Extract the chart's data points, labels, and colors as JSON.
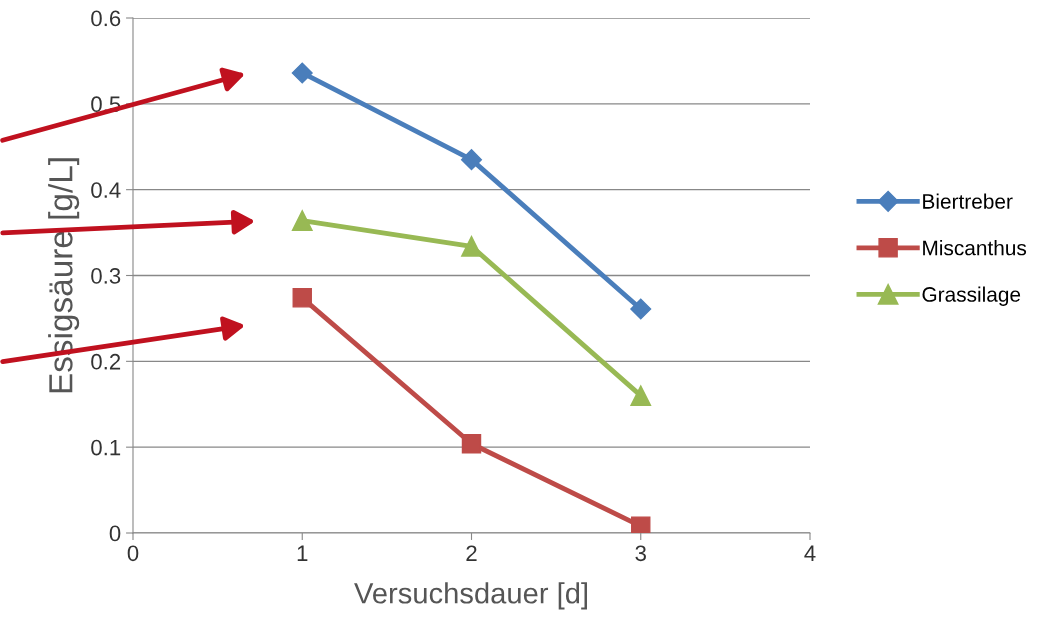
{
  "chart_data": {
    "type": "line",
    "xlabel": "Versuchsdauer [d]",
    "ylabel": "Essigsäure [g/L]",
    "x": [
      1,
      2,
      3
    ],
    "series": [
      {
        "name": "Biertreber",
        "color": "#4a7ebb",
        "marker": "diamond",
        "values": [
          0.536,
          0.435,
          0.261
        ]
      },
      {
        "name": "Miscanthus",
        "color": "#be4b48",
        "marker": "square",
        "values": [
          0.274,
          0.104,
          0.008
        ]
      },
      {
        "name": "Grassilage",
        "color": "#98b954",
        "marker": "triangle",
        "values": [
          0.364,
          0.334,
          0.16
        ]
      }
    ],
    "xlim": [
      0,
      4
    ],
    "xticks": [
      0,
      1,
      2,
      3,
      4
    ],
    "ylim": [
      0,
      0.6
    ],
    "yticks": [
      0,
      0.1,
      0.2,
      0.3,
      0.4,
      0.5,
      0.6
    ],
    "grid": "y",
    "legend": "right",
    "line_style": "solid"
  }
}
